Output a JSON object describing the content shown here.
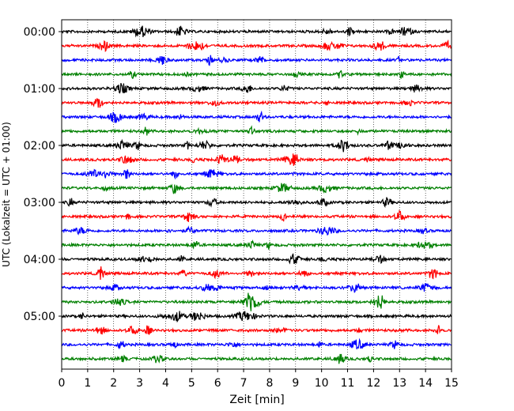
{
  "chart_data": {
    "type": "line",
    "title": "",
    "xlabel": "Zeit  [min]",
    "ylabel": "UTC (Lokalzeit = UTC + 01:00)",
    "xlim": [
      0,
      15
    ],
    "x_ticks": [
      "0",
      "1",
      "2",
      "3",
      "4",
      "5",
      "6",
      "7",
      "8",
      "9",
      "10",
      "11",
      "12",
      "13",
      "14",
      "15"
    ],
    "y_ticks": [
      {
        "label": "00:00",
        "trace": 0
      },
      {
        "label": "01:00",
        "trace": 4
      },
      {
        "label": "02:00",
        "trace": 8
      },
      {
        "label": "03:00",
        "trace": 12
      },
      {
        "label": "04:00",
        "trace": 16
      },
      {
        "label": "05:00",
        "trace": 20
      }
    ],
    "trace_interval_minutes": 15,
    "trace_count": 24,
    "trace_colors": [
      "#000000",
      "#ff0000",
      "#0000ff",
      "#008000"
    ],
    "grid": {
      "vertical": true,
      "style": "dotted"
    },
    "legend": "none"
  }
}
